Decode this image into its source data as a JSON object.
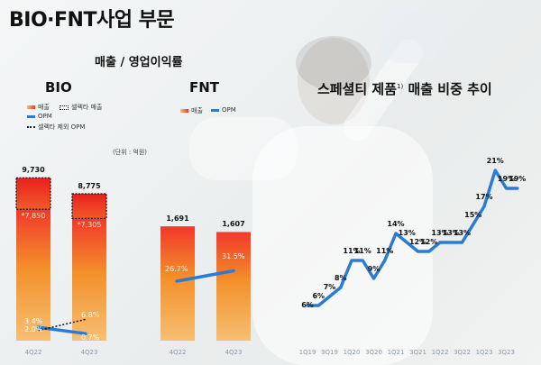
{
  "header": {
    "title": "BIO·FNT사업 부문",
    "subtitle": "매출 / 영업이익률"
  },
  "bio": {
    "title": "BIO",
    "legend": {
      "sales": "매출",
      "celltrion_sales": "셀렉타 매출",
      "opm": "OPM",
      "opm_ex": "셀렉타 제외 OPM"
    },
    "unit": "(단위 : 억원)"
  },
  "fnt": {
    "title": "FNT",
    "legend": {
      "sales": "매출",
      "opm": "OPM"
    }
  },
  "right": {
    "title": "스페셜티 제품",
    "sup": "1)",
    "title2": "매출 비중 추이"
  },
  "colors": {
    "bar_top": "#f2382a",
    "bar_mid": "#f3902a",
    "bar_bottom": "#f7bf73",
    "line": "#2b7bd6"
  },
  "chart_data": [
    {
      "type": "bar",
      "title": "BIO",
      "categories": [
        "4Q22",
        "4Q23"
      ],
      "series": [
        {
          "name": "매출",
          "values": [
            7850,
            7305
          ],
          "labels": [
            "*7,850",
            "*7,305"
          ]
        },
        {
          "name": "셀렉타 매출",
          "values": [
            1880,
            1470
          ]
        },
        {
          "name": "OPM",
          "values": [
            3.4,
            0.7
          ],
          "labels": [
            "3.4%",
            "0.7%"
          ]
        },
        {
          "name": "셀렉타 제외 OPM",
          "values": [
            2.0,
            6.8
          ],
          "labels": [
            "2.0%",
            "6.8%"
          ]
        }
      ],
      "totals": [
        9730,
        8775
      ],
      "total_labels": [
        "9,730",
        "8,775"
      ],
      "ylim": [
        0,
        10500
      ]
    },
    {
      "type": "bar",
      "title": "FNT",
      "categories": [
        "4Q22",
        "4Q23"
      ],
      "series": [
        {
          "name": "매출",
          "values": [
            1691,
            1607
          ],
          "labels": [
            "1,691",
            "1,607"
          ]
        },
        {
          "name": "OPM",
          "values": [
            26.7,
            31.5
          ],
          "labels": [
            "26.7%",
            "31.5%"
          ]
        }
      ],
      "ylim": [
        0,
        2200
      ]
    },
    {
      "type": "line",
      "title": "스페셜티 제품 매출 비중 추이",
      "x": [
        "1Q19",
        "2Q19",
        "3Q19",
        "4Q19",
        "1Q20",
        "2Q20",
        "3Q20",
        "4Q20",
        "1Q21",
        "2Q21",
        "3Q21",
        "4Q21",
        "1Q22",
        "2Q22",
        "3Q22",
        "4Q22",
        "1Q23",
        "2Q23",
        "3Q23",
        "4Q23"
      ],
      "x_tick_labels": [
        "1Q19",
        "3Q19",
        "1Q20",
        "3Q20",
        "1Q21",
        "3Q21",
        "1Q22",
        "3Q22",
        "1Q23",
        "3Q23"
      ],
      "series": [
        {
          "name": "",
          "values": [
            6,
            6,
            7,
            8,
            11,
            11,
            9,
            11,
            14,
            13,
            12,
            12,
            13,
            13,
            13,
            15,
            17,
            21,
            19,
            19
          ],
          "labels": [
            "6%",
            "6%",
            "7%",
            "8%",
            "11%",
            "11%",
            "9%",
            "11%",
            "14%",
            "13%",
            "12%",
            "12%",
            "13%",
            "13%",
            "13%",
            "15%",
            "17%",
            "21%",
            "19%",
            "19%"
          ]
        }
      ],
      "ylim": [
        5,
        22
      ]
    }
  ]
}
